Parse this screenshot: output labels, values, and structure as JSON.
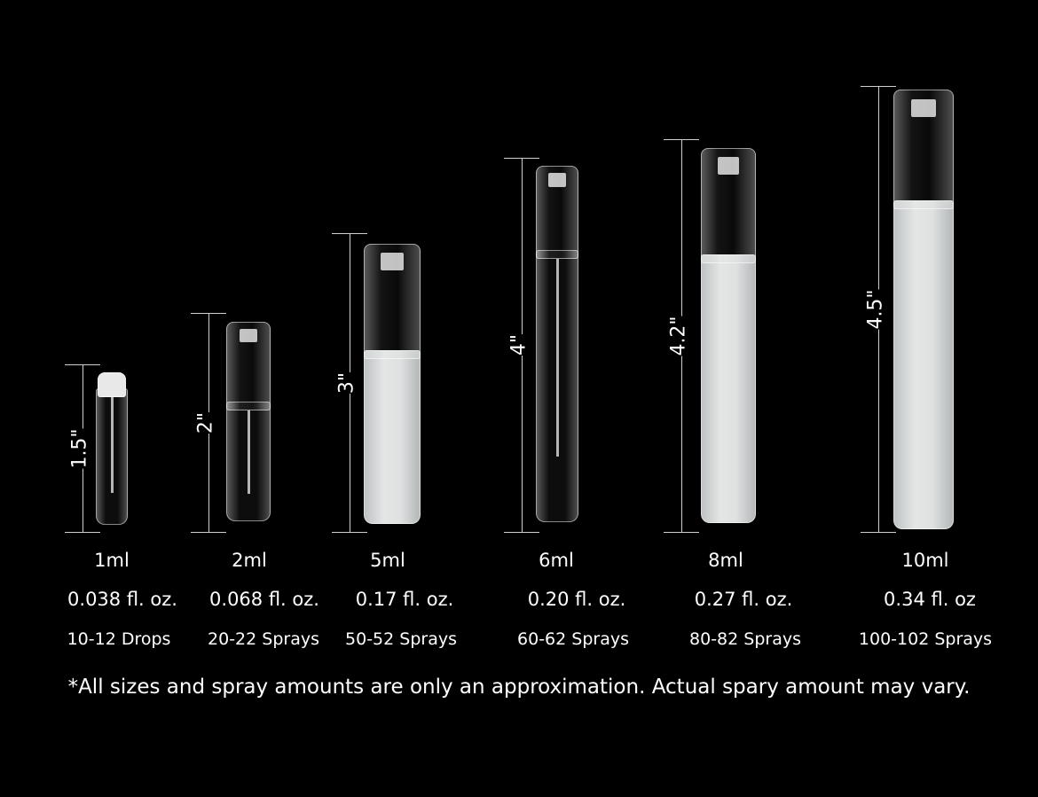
{
  "items": [
    {
      "height": "1.5\"",
      "volume": "1ml",
      "floz": "0.038 fl. oz.",
      "amount": "10-12 Drops"
    },
    {
      "height": "2\"",
      "volume": "2ml",
      "floz": "0.068 fl. oz.",
      "amount": "20-22 Sprays"
    },
    {
      "height": "3\"",
      "volume": "5ml",
      "floz": "0.17 fl. oz.",
      "amount": "50-52 Sprays"
    },
    {
      "height": "4\"",
      "volume": "6ml",
      "floz": "0.20 fl. oz.",
      "amount": "60-62 Sprays"
    },
    {
      "height": "4.2\"",
      "volume": "8ml",
      "floz": "0.27 fl. oz.",
      "amount": "80-82 Sprays"
    },
    {
      "height": "4.5\"",
      "volume": "10ml",
      "floz": "0.34 fl. oz",
      "amount": "100-102 Sprays"
    }
  ],
  "footnote": "*All sizes and spray amounts are only an approximation. Actual spary amount may vary.",
  "colors": {
    "background": "#000000",
    "text": "#ffffff"
  }
}
